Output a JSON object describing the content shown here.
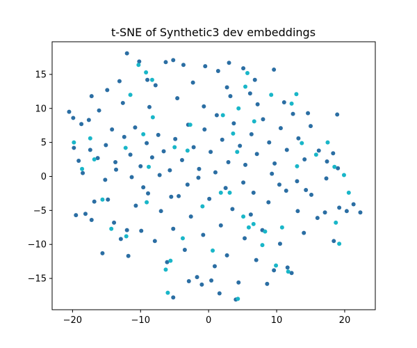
{
  "chart_data": {
    "type": "scatter",
    "title": "t-SNE of Synthetic3 dev embeddings",
    "xlabel": "",
    "ylabel": "",
    "xlim": [
      -23,
      24.5
    ],
    "ylim": [
      -19.6,
      19.8
    ],
    "x_ticks": [
      -20,
      -10,
      0,
      10,
      20
    ],
    "y_ticks": [
      -15,
      -10,
      -5,
      0,
      5,
      10,
      15
    ],
    "grid": false,
    "legend": "none",
    "colors": {
      "dark": "#2b6ea3",
      "light": "#19b6c8"
    },
    "points": [
      [
        -20.5,
        9.5,
        0
      ],
      [
        -19.9,
        8.6,
        0
      ],
      [
        -18.7,
        7.7,
        0
      ],
      [
        -17.6,
        8.3,
        0
      ],
      [
        -17.2,
        11.8,
        0
      ],
      [
        -14.9,
        12.7,
        0
      ],
      [
        -13.1,
        14.0,
        0
      ],
      [
        -12.0,
        18.1,
        0
      ],
      [
        -10.2,
        16.9,
        0
      ],
      [
        -9.0,
        14.2,
        0
      ],
      [
        -6.3,
        16.8,
        0
      ],
      [
        -5.2,
        17.1,
        0
      ],
      [
        -3.7,
        16.4,
        0
      ],
      [
        -0.5,
        16.2,
        0
      ],
      [
        1.4,
        15.5,
        0
      ],
      [
        3.0,
        16.7,
        0
      ],
      [
        5.1,
        15.9,
        0
      ],
      [
        6.8,
        14.2,
        0
      ],
      [
        9.6,
        15.7,
        0
      ],
      [
        -19.8,
        4.2,
        0
      ],
      [
        -19.1,
        2.3,
        0
      ],
      [
        -18.5,
        0.5,
        0
      ],
      [
        -17.4,
        3.9,
        0
      ],
      [
        -16.3,
        2.7,
        0
      ],
      [
        -15.1,
        4.6,
        0
      ],
      [
        -14.2,
        6.9,
        0
      ],
      [
        -13.7,
        2.1,
        0
      ],
      [
        -12.4,
        5.8,
        0
      ],
      [
        -11.5,
        3.2,
        0
      ],
      [
        -10.8,
        7.2,
        0
      ],
      [
        -10.0,
        1.5,
        0
      ],
      [
        -9.1,
        4.9,
        0
      ],
      [
        -8.3,
        2.8,
        0
      ],
      [
        -7.4,
        6.1,
        0
      ],
      [
        -6.6,
        3.7,
        0
      ],
      [
        -5.7,
        0.9,
        0
      ],
      [
        -4.9,
        5.5,
        0
      ],
      [
        -3.9,
        2.4,
        0
      ],
      [
        -3.0,
        7.6,
        0
      ],
      [
        -2.2,
        4.3,
        0
      ],
      [
        -1.4,
        1.1,
        0
      ],
      [
        -0.6,
        6.9,
        0
      ],
      [
        0.3,
        3.6,
        0
      ],
      [
        1.2,
        9.0,
        0
      ],
      [
        2.0,
        5.4,
        0
      ],
      [
        2.9,
        2.1,
        0
      ],
      [
        3.7,
        7.8,
        0
      ],
      [
        4.6,
        4.5,
        0
      ],
      [
        5.4,
        1.7,
        0
      ],
      [
        6.3,
        6.2,
        0
      ],
      [
        7.1,
        3.3,
        0
      ],
      [
        8.0,
        8.4,
        0
      ],
      [
        8.9,
        5.0,
        0
      ],
      [
        9.7,
        1.9,
        0
      ],
      [
        10.6,
        7.1,
        0
      ],
      [
        11.5,
        3.9,
        0
      ],
      [
        12.4,
        9.2,
        0
      ],
      [
        13.2,
        5.6,
        0
      ],
      [
        14.1,
        2.5,
        0
      ],
      [
        15.0,
        7.4,
        0
      ],
      [
        16.2,
        3.8,
        0
      ],
      [
        17.4,
        2.2,
        0
      ],
      [
        18.3,
        3.4,
        0
      ],
      [
        18.9,
        9.1,
        0
      ],
      [
        -19.5,
        -5.7,
        0
      ],
      [
        -18.1,
        -5.5,
        0
      ],
      [
        -17.2,
        -6.4,
        0
      ],
      [
        -16.8,
        -3.7,
        0
      ],
      [
        -15.6,
        -11.3,
        0
      ],
      [
        -14.8,
        -3.4,
        0
      ],
      [
        -13.9,
        -6.8,
        0
      ],
      [
        -12.9,
        -9.2,
        0
      ],
      [
        -11.8,
        -11.7,
        0
      ],
      [
        -10.7,
        -4.3,
        0
      ],
      [
        -9.9,
        -8.0,
        0
      ],
      [
        -8.9,
        -2.5,
        0
      ],
      [
        -7.9,
        -9.5,
        0
      ],
      [
        -7.0,
        -5.1,
        0
      ],
      [
        -6.1,
        -12.6,
        0
      ],
      [
        -5.2,
        -7.7,
        0
      ],
      [
        -4.4,
        -2.9,
        0
      ],
      [
        -3.5,
        -10.8,
        0
      ],
      [
        -2.6,
        -5.9,
        0
      ],
      [
        -1.7,
        -14.8,
        0
      ],
      [
        -0.8,
        -8.6,
        0
      ],
      [
        0.1,
        -3.3,
        0
      ],
      [
        0.9,
        -13.2,
        0
      ],
      [
        1.8,
        -7.2,
        0
      ],
      [
        2.7,
        -11.6,
        0
      ],
      [
        3.5,
        -4.8,
        0
      ],
      [
        4.4,
        -15.6,
        0
      ],
      [
        5.3,
        -9.1,
        0
      ],
      [
        6.2,
        -5.6,
        0
      ],
      [
        7.0,
        -12.3,
        0
      ],
      [
        7.9,
        -7.9,
        0
      ],
      [
        8.8,
        -3.8,
        0
      ],
      [
        9.6,
        -13.8,
        0
      ],
      [
        10.5,
        -9.9,
        0
      ],
      [
        11.4,
        -2.1,
        0
      ],
      [
        12.2,
        -14.2,
        0
      ],
      [
        13.1,
        -5.1,
        0
      ],
      [
        14.0,
        -8.3,
        0
      ],
      [
        15.1,
        -2.7,
        0
      ],
      [
        16.0,
        -6.1,
        0
      ],
      [
        17.1,
        -5.3,
        0
      ],
      [
        18.4,
        -9.5,
        0
      ],
      [
        19.2,
        -4.6,
        0
      ],
      [
        20.3,
        -5.1,
        0
      ],
      [
        21.3,
        -4.1,
        0
      ],
      [
        22.3,
        -5.3,
        0
      ],
      [
        -5.2,
        -17.8,
        0
      ],
      [
        -2.9,
        -15.4,
        0
      ],
      [
        -1.0,
        -15.9,
        0
      ],
      [
        0.4,
        -15.3,
        0
      ],
      [
        1.6,
        -17.2,
        0
      ],
      [
        8.6,
        -15.8,
        0
      ],
      [
        11.6,
        -13.4,
        0
      ],
      [
        -15.2,
        -0.5,
        0
      ],
      [
        -11.3,
        -0.1,
        0
      ],
      [
        -7.2,
        0.2,
        0
      ],
      [
        -3.1,
        -1.2,
        0
      ],
      [
        1.0,
        0.6,
        0
      ],
      [
        5.1,
        -0.9,
        0
      ],
      [
        9.3,
        0.4,
        0
      ],
      [
        13.0,
        -0.7,
        0
      ],
      [
        17.3,
        -0.3,
        0
      ],
      [
        -16.1,
        9.7,
        0
      ],
      [
        -12.6,
        10.8,
        0
      ],
      [
        -8.7,
        10.2,
        0
      ],
      [
        -4.6,
        11.5,
        0
      ],
      [
        -0.7,
        10.3,
        0
      ],
      [
        3.2,
        11.8,
        0
      ],
      [
        7.2,
        10.6,
        0
      ],
      [
        11.1,
        10.9,
        0
      ],
      [
        14.6,
        9.3,
        0
      ],
      [
        -7.8,
        13.4,
        0
      ],
      [
        -2.3,
        13.8,
        0
      ],
      [
        2.7,
        13.1,
        0
      ],
      [
        6.1,
        12.2,
        0
      ],
      [
        -13.6,
        1.0,
        0
      ],
      [
        -9.6,
        -1.6,
        0
      ],
      [
        -5.5,
        -3.0,
        0
      ],
      [
        -1.5,
        -0.2,
        0
      ],
      [
        2.5,
        -1.7,
        0
      ],
      [
        6.6,
        -2.4,
        0
      ],
      [
        10.4,
        -1.2,
        0
      ],
      [
        14.3,
        -2.0,
        0
      ],
      [
        4.0,
        -18.1,
        0
      ],
      [
        -12.0,
        -7.9,
        0
      ],
      [
        19.0,
        1.2,
        0
      ],
      [
        -19.8,
        5.0,
        1
      ],
      [
        -17.4,
        5.6,
        1
      ],
      [
        -18.6,
        1.1,
        1
      ],
      [
        -16.8,
        2.5,
        1
      ],
      [
        -15.6,
        -3.4,
        1
      ],
      [
        -14.3,
        -7.7,
        1
      ],
      [
        -12.1,
        -8.8,
        1
      ],
      [
        -11.5,
        12.0,
        1
      ],
      [
        -10.3,
        16.4,
        1
      ],
      [
        -9.2,
        15.3,
        1
      ],
      [
        -8.3,
        14.2,
        1
      ],
      [
        -9.6,
        6.2,
        1
      ],
      [
        -8.2,
        8.7,
        1
      ],
      [
        -8.8,
        1.4,
        1
      ],
      [
        -6.3,
        -13.7,
        1
      ],
      [
        -5.6,
        -12.4,
        1
      ],
      [
        -6.0,
        -17.1,
        1
      ],
      [
        -5.0,
        4.3,
        1
      ],
      [
        -2.7,
        7.6,
        1
      ],
      [
        -3.1,
        3.8,
        1
      ],
      [
        -0.9,
        -4.4,
        1
      ],
      [
        1.8,
        -2.4,
        1
      ],
      [
        3.1,
        -2.4,
        1
      ],
      [
        2.1,
        9.0,
        1
      ],
      [
        3.6,
        6.3,
        1
      ],
      [
        4.2,
        3.6,
        1
      ],
      [
        4.4,
        10.0,
        1
      ],
      [
        5.4,
        13.2,
        1
      ],
      [
        5.7,
        15.2,
        1
      ],
      [
        6.7,
        8.1,
        1
      ],
      [
        5.9,
        -7.5,
        1
      ],
      [
        5.1,
        -5.9,
        1
      ],
      [
        6.6,
        -7.0,
        1
      ],
      [
        8.3,
        -8.1,
        1
      ],
      [
        7.9,
        -10.1,
        1
      ],
      [
        9.9,
        -13.1,
        1
      ],
      [
        11.7,
        -14.0,
        1
      ],
      [
        10.8,
        -7.5,
        1
      ],
      [
        9.2,
        12.0,
        1
      ],
      [
        12.2,
        10.7,
        1
      ],
      [
        12.9,
        12.1,
        1
      ],
      [
        13.7,
        4.9,
        1
      ],
      [
        13.0,
        1.5,
        1
      ],
      [
        15.8,
        3.2,
        1
      ],
      [
        17.5,
        5.0,
        1
      ],
      [
        18.5,
        1.4,
        1
      ],
      [
        19.9,
        0.2,
        1
      ],
      [
        20.6,
        -2.4,
        1
      ],
      [
        18.7,
        -6.8,
        1
      ],
      [
        19.2,
        -9.9,
        1
      ],
      [
        -12.2,
        4.2,
        1
      ],
      [
        -9.1,
        -3.8,
        1
      ],
      [
        -3.8,
        -9.1,
        1
      ],
      [
        0.6,
        -10.9,
        1
      ],
      [
        4.3,
        -18.0,
        1
      ]
    ]
  }
}
